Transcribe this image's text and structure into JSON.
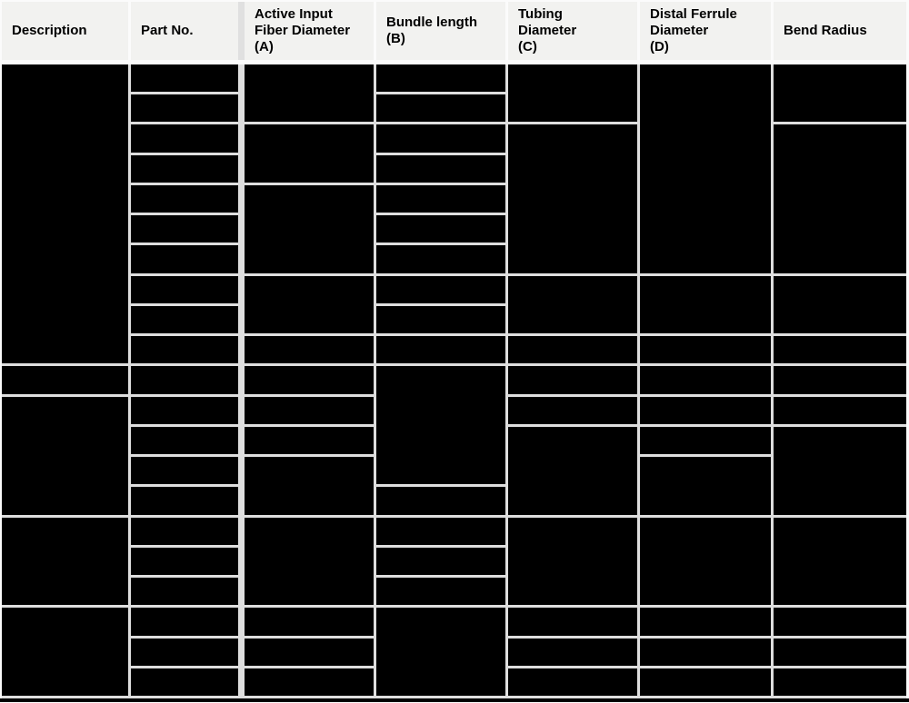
{
  "table": {
    "columns": [
      {
        "id": "description",
        "label": "Description"
      },
      {
        "id": "part-no",
        "label": "Part No."
      },
      {
        "id": "active-input-fiber-diameter",
        "label": "Active Input\nFiber Diameter\n(A)"
      },
      {
        "id": "bundle-length",
        "label": "Bundle length\n(B)"
      },
      {
        "id": "tubing-diameter",
        "label": "Tubing\nDiameter\n(C)"
      },
      {
        "id": "distal-ferrule-diameter",
        "label": "Distal Ferrule\nDiameter\n(D)"
      },
      {
        "id": "bend-radius",
        "label": "Bend Radius"
      }
    ],
    "row_count": 21,
    "body_cells": [
      [
        1,
        1,
        10
      ],
      [
        1,
        11,
        1
      ],
      [
        1,
        12,
        4
      ],
      [
        1,
        16,
        3
      ],
      [
        1,
        19,
        3
      ],
      [
        2,
        1,
        1
      ],
      [
        2,
        2,
        1
      ],
      [
        2,
        3,
        1
      ],
      [
        2,
        4,
        1
      ],
      [
        2,
        5,
        1
      ],
      [
        2,
        6,
        1
      ],
      [
        2,
        7,
        1
      ],
      [
        2,
        8,
        1
      ],
      [
        2,
        9,
        1
      ],
      [
        2,
        10,
        1
      ],
      [
        2,
        11,
        1
      ],
      [
        2,
        12,
        1
      ],
      [
        2,
        13,
        1
      ],
      [
        2,
        14,
        1
      ],
      [
        2,
        15,
        1
      ],
      [
        2,
        16,
        1
      ],
      [
        2,
        17,
        1
      ],
      [
        2,
        18,
        1
      ],
      [
        2,
        19,
        1
      ],
      [
        2,
        20,
        1
      ],
      [
        2,
        21,
        1
      ],
      [
        3,
        1,
        2
      ],
      [
        3,
        3,
        2
      ],
      [
        3,
        5,
        3
      ],
      [
        3,
        8,
        2
      ],
      [
        3,
        10,
        1
      ],
      [
        3,
        11,
        1
      ],
      [
        3,
        12,
        1
      ],
      [
        3,
        13,
        1
      ],
      [
        3,
        14,
        2
      ],
      [
        3,
        16,
        3
      ],
      [
        3,
        19,
        1
      ],
      [
        3,
        20,
        1
      ],
      [
        3,
        21,
        1
      ],
      [
        4,
        1,
        1
      ],
      [
        4,
        2,
        1
      ],
      [
        4,
        3,
        1
      ],
      [
        4,
        4,
        1
      ],
      [
        4,
        5,
        1
      ],
      [
        4,
        6,
        1
      ],
      [
        4,
        7,
        1
      ],
      [
        4,
        8,
        1
      ],
      [
        4,
        9,
        1
      ],
      [
        4,
        10,
        1
      ],
      [
        4,
        11,
        4
      ],
      [
        4,
        15,
        1
      ],
      [
        4,
        16,
        1
      ],
      [
        4,
        17,
        1
      ],
      [
        4,
        18,
        1
      ],
      [
        4,
        19,
        3
      ],
      [
        5,
        1,
        2
      ],
      [
        5,
        3,
        5
      ],
      [
        5,
        8,
        2
      ],
      [
        5,
        10,
        1
      ],
      [
        5,
        11,
        1
      ],
      [
        5,
        12,
        1
      ],
      [
        5,
        13,
        3
      ],
      [
        5,
        16,
        3
      ],
      [
        5,
        19,
        1
      ],
      [
        5,
        20,
        1
      ],
      [
        5,
        21,
        1
      ],
      [
        6,
        1,
        7
      ],
      [
        6,
        8,
        2
      ],
      [
        6,
        10,
        1
      ],
      [
        6,
        11,
        1
      ],
      [
        6,
        12,
        1
      ],
      [
        6,
        13,
        1
      ],
      [
        6,
        14,
        2
      ],
      [
        6,
        16,
        3
      ],
      [
        6,
        19,
        1
      ],
      [
        6,
        20,
        1
      ],
      [
        6,
        21,
        1
      ],
      [
        7,
        1,
        2
      ],
      [
        7,
        3,
        5
      ],
      [
        7,
        8,
        2
      ],
      [
        7,
        10,
        1
      ],
      [
        7,
        11,
        1
      ],
      [
        7,
        12,
        1
      ],
      [
        7,
        13,
        3
      ],
      [
        7,
        16,
        3
      ],
      [
        7,
        19,
        1
      ],
      [
        7,
        20,
        1
      ],
      [
        7,
        21,
        1
      ]
    ]
  },
  "colors": {
    "header_bg": "#f2f2f0",
    "header_text": "#000000",
    "cell_fill": "#000000",
    "body_gap": "#dedede",
    "header_gap": "#fbfbfb",
    "divider_gap": "#e0e0e0",
    "bottom_border": "#000000"
  }
}
